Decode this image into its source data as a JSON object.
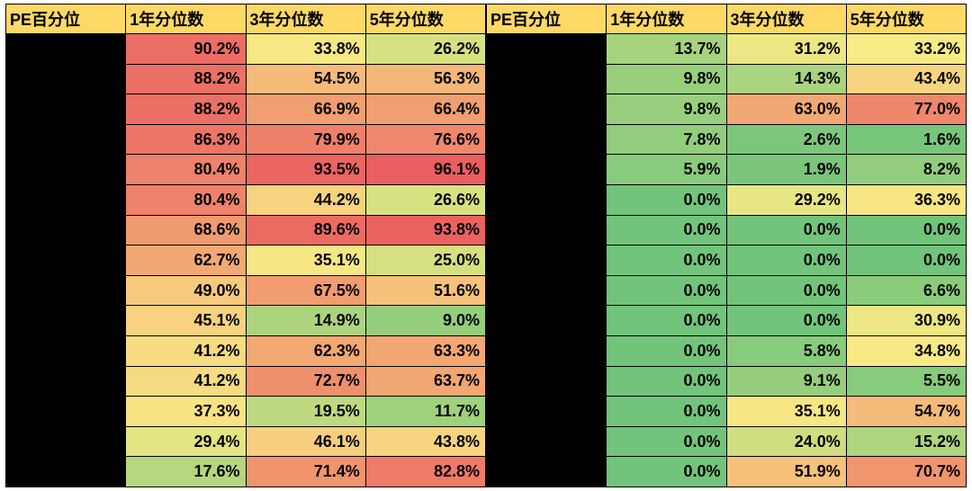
{
  "headers": {
    "label": "PE百分位",
    "y1": "1年分位数",
    "y3": "3年分位数",
    "y5": "5年分位数"
  },
  "header_bg": "#ffd966",
  "header_fg": "#000000",
  "left_rows": [
    {
      "y1": {
        "v": "90.2%",
        "bg": "#ec6e64"
      },
      "y3": {
        "v": "33.8%",
        "bg": "#f6e984"
      },
      "y5": {
        "v": "26.2%",
        "bg": "#d8e182"
      }
    },
    {
      "y1": {
        "v": "88.2%",
        "bg": "#ec7065"
      },
      "y3": {
        "v": "54.5%",
        "bg": "#f5bb7a"
      },
      "y5": {
        "v": "56.3%",
        "bg": "#f5b779"
      }
    },
    {
      "y1": {
        "v": "88.2%",
        "bg": "#ec7065"
      },
      "y3": {
        "v": "66.9%",
        "bg": "#f19e70"
      },
      "y5": {
        "v": "66.4%",
        "bg": "#f19f70"
      }
    },
    {
      "y1": {
        "v": "86.3%",
        "bg": "#ed7566"
      },
      "y3": {
        "v": "79.9%",
        "bg": "#ee806a"
      },
      "y5": {
        "v": "76.6%",
        "bg": "#ef886c"
      }
    },
    {
      "y1": {
        "v": "80.4%",
        "bg": "#ee826a"
      },
      "y3": {
        "v": "93.5%",
        "bg": "#eb6561"
      },
      "y5": {
        "v": "96.1%",
        "bg": "#ea5e5f"
      }
    },
    {
      "y1": {
        "v": "80.4%",
        "bg": "#ee826a"
      },
      "y3": {
        "v": "44.2%",
        "bg": "#f7d37f"
      },
      "y5": {
        "v": "26.6%",
        "bg": "#d8e182"
      }
    },
    {
      "y1": {
        "v": "68.6%",
        "bg": "#f09b6f"
      },
      "y3": {
        "v": "89.6%",
        "bg": "#eb6b63"
      },
      "y5": {
        "v": "93.8%",
        "bg": "#ea6260"
      }
    },
    {
      "y1": {
        "v": "62.7%",
        "bg": "#f2a873"
      },
      "y3": {
        "v": "35.1%",
        "bg": "#f7e784"
      },
      "y5": {
        "v": "25.0%",
        "bg": "#d5e081"
      }
    },
    {
      "y1": {
        "v": "49.0%",
        "bg": "#f6c97d"
      },
      "y3": {
        "v": "67.5%",
        "bg": "#f19d6f"
      },
      "y5": {
        "v": "51.6%",
        "bg": "#f6c27b"
      }
    },
    {
      "y1": {
        "v": "45.1%",
        "bg": "#f7d27f"
      },
      "y3": {
        "v": "14.9%",
        "bg": "#acd47f"
      },
      "y5": {
        "v": "9.0%",
        "bg": "#95ce7d"
      }
    },
    {
      "y1": {
        "v": "41.2%",
        "bg": "#f7db81"
      },
      "y3": {
        "v": "62.3%",
        "bg": "#f2a973"
      },
      "y5": {
        "v": "63.3%",
        "bg": "#f2a773"
      }
    },
    {
      "y1": {
        "v": "41.2%",
        "bg": "#f7db81"
      },
      "y3": {
        "v": "72.7%",
        "bg": "#ef906d"
      },
      "y5": {
        "v": "63.7%",
        "bg": "#f2a672"
      }
    },
    {
      "y1": {
        "v": "37.3%",
        "bg": "#f8e383"
      },
      "y3": {
        "v": "19.5%",
        "bg": "#bed980"
      },
      "y5": {
        "v": "11.7%",
        "bg": "#a0d17d"
      }
    },
    {
      "y1": {
        "v": "29.4%",
        "bg": "#e4e583"
      },
      "y3": {
        "v": "46.1%",
        "bg": "#f6ce7e"
      },
      "y5": {
        "v": "43.8%",
        "bg": "#f7d47f"
      }
    },
    {
      "y1": {
        "v": "17.6%",
        "bg": "#b6d67f"
      },
      "y3": {
        "v": "71.4%",
        "bg": "#f0946e"
      },
      "y5": {
        "v": "82.8%",
        "bg": "#ee7b68"
      }
    }
  ],
  "right_rows": [
    {
      "y1": {
        "v": "13.7%",
        "bg": "#a7d37e"
      },
      "y3": {
        "v": "31.2%",
        "bg": "#eee683"
      },
      "y5": {
        "v": "33.2%",
        "bg": "#f6eb84"
      }
    },
    {
      "y1": {
        "v": "9.8%",
        "bg": "#98cf7d"
      },
      "y3": {
        "v": "14.3%",
        "bg": "#aad47f"
      },
      "y5": {
        "v": "43.4%",
        "bg": "#f7d580"
      }
    },
    {
      "y1": {
        "v": "9.8%",
        "bg": "#98cf7d"
      },
      "y3": {
        "v": "63.0%",
        "bg": "#f2a873"
      },
      "y5": {
        "v": "77.0%",
        "bg": "#ef876b"
      }
    },
    {
      "y1": {
        "v": "7.8%",
        "bg": "#91cd7c"
      },
      "y3": {
        "v": "2.6%",
        "bg": "#7cc77b"
      },
      "y5": {
        "v": "1.6%",
        "bg": "#78c67b"
      }
    },
    {
      "y1": {
        "v": "5.9%",
        "bg": "#89cb7c"
      },
      "y3": {
        "v": "1.9%",
        "bg": "#79c67b"
      },
      "y5": {
        "v": "8.2%",
        "bg": "#92cd7d"
      }
    },
    {
      "y1": {
        "v": "0.0%",
        "bg": "#72c47b"
      },
      "y3": {
        "v": "29.2%",
        "bg": "#e6e683"
      },
      "y5": {
        "v": "36.3%",
        "bg": "#f8e583"
      }
    },
    {
      "y1": {
        "v": "0.0%",
        "bg": "#72c47b"
      },
      "y3": {
        "v": "0.0%",
        "bg": "#72c47b"
      },
      "y5": {
        "v": "0.0%",
        "bg": "#72c47b"
      }
    },
    {
      "y1": {
        "v": "0.0%",
        "bg": "#72c47b"
      },
      "y3": {
        "v": "0.0%",
        "bg": "#72c47b"
      },
      "y5": {
        "v": "0.0%",
        "bg": "#72c47b"
      }
    },
    {
      "y1": {
        "v": "0.0%",
        "bg": "#72c47b"
      },
      "y3": {
        "v": "0.0%",
        "bg": "#72c47b"
      },
      "y5": {
        "v": "6.6%",
        "bg": "#8bcb7c"
      }
    },
    {
      "y1": {
        "v": "0.0%",
        "bg": "#72c47b"
      },
      "y3": {
        "v": "0.0%",
        "bg": "#72c47b"
      },
      "y5": {
        "v": "30.9%",
        "bg": "#ede683"
      }
    },
    {
      "y1": {
        "v": "0.0%",
        "bg": "#72c47b"
      },
      "y3": {
        "v": "5.8%",
        "bg": "#88cb7c"
      },
      "y5": {
        "v": "34.8%",
        "bg": "#f8e984"
      }
    },
    {
      "y1": {
        "v": "0.0%",
        "bg": "#72c47b"
      },
      "y3": {
        "v": "9.1%",
        "bg": "#96ce7d"
      },
      "y5": {
        "v": "5.5%",
        "bg": "#87cb7c"
      }
    },
    {
      "y1": {
        "v": "0.0%",
        "bg": "#72c47b"
      },
      "y3": {
        "v": "35.1%",
        "bg": "#f7e784"
      },
      "y5": {
        "v": "54.7%",
        "bg": "#f5bb7a"
      }
    },
    {
      "y1": {
        "v": "0.0%",
        "bg": "#72c47b"
      },
      "y3": {
        "v": "24.0%",
        "bg": "#d0de81"
      },
      "y5": {
        "v": "15.2%",
        "bg": "#aed57f"
      }
    },
    {
      "y1": {
        "v": "0.0%",
        "bg": "#72c47b"
      },
      "y3": {
        "v": "51.9%",
        "bg": "#f5c17b"
      },
      "y5": {
        "v": "70.7%",
        "bg": "#f0956e"
      }
    }
  ]
}
